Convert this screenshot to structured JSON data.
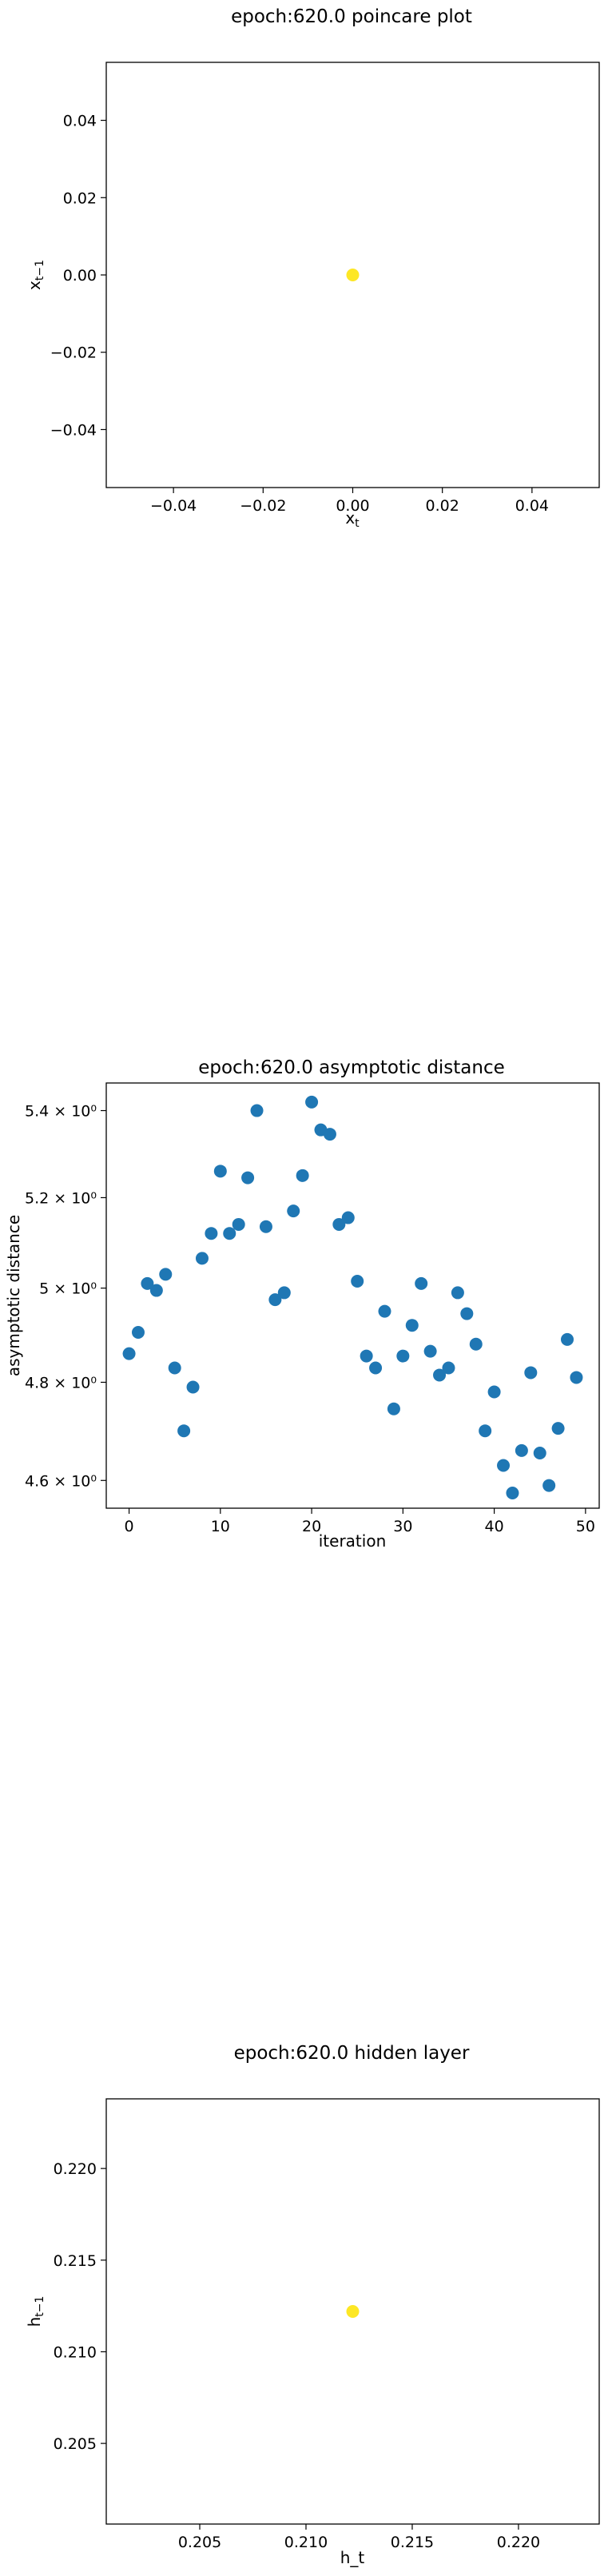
{
  "chart_data": [
    {
      "type": "scatter",
      "title": "epoch:620.0 poincare plot",
      "xlabel": "x_t",
      "ylabel": "x_{t-1}",
      "xlim": [
        -0.055,
        0.055
      ],
      "ylim": [
        -0.055,
        0.055
      ],
      "xticks": [
        -0.04,
        -0.02,
        0.0,
        0.02,
        0.04
      ],
      "xtick_labels": [
        "−0.04",
        "−0.02",
        "0.00",
        "0.02",
        "0.04"
      ],
      "yticks": [
        -0.04,
        -0.02,
        0.0,
        0.02,
        0.04
      ],
      "ytick_labels": [
        "−0.04",
        "−0.02",
        "0.00",
        "0.02",
        "0.04"
      ],
      "grid": false,
      "point_color": "#fde725",
      "points": [
        {
          "x": 0.0,
          "y": 0.0
        }
      ]
    },
    {
      "type": "scatter",
      "title": "epoch:620.0 asymptotic distance",
      "xlabel": "iteration",
      "ylabel": "asymptotic distance",
      "xlim": [
        -2.5,
        51.5
      ],
      "ylim": [
        4.545,
        5.465
      ],
      "yscale": "log",
      "xticks": [
        0,
        10,
        20,
        30,
        40,
        50
      ],
      "xtick_labels": [
        "0",
        "10",
        "20",
        "30",
        "40",
        "50"
      ],
      "yticks": [
        4.6,
        4.8,
        5.0,
        5.2,
        5.4
      ],
      "ytick_labels": [
        "4.6 × 10⁰",
        "4.8 × 10⁰",
        "5 × 10⁰",
        "5.2 × 10⁰",
        "5.4 × 10⁰"
      ],
      "grid": false,
      "point_color": "#1f77b4",
      "x": [
        0,
        1,
        2,
        3,
        4,
        5,
        6,
        7,
        8,
        9,
        10,
        11,
        12,
        13,
        14,
        15,
        16,
        17,
        18,
        19,
        20,
        21,
        22,
        23,
        24,
        25,
        26,
        27,
        28,
        29,
        30,
        31,
        32,
        33,
        34,
        35,
        36,
        37,
        38,
        39,
        40,
        41,
        42,
        43,
        44,
        45,
        46,
        47,
        48,
        49
      ],
      "y": [
        4.86,
        4.905,
        5.01,
        4.995,
        5.03,
        4.83,
        4.7,
        4.79,
        5.065,
        5.12,
        5.26,
        5.12,
        5.14,
        5.245,
        5.4,
        5.135,
        4.975,
        4.99,
        5.17,
        5.25,
        5.42,
        5.355,
        5.345,
        5.14,
        5.155,
        5.015,
        4.855,
        4.83,
        4.95,
        4.745,
        4.855,
        4.92,
        5.01,
        4.865,
        4.815,
        4.83,
        4.99,
        4.945,
        4.88,
        4.7,
        4.78,
        4.63,
        4.575,
        4.66,
        4.82,
        4.655,
        4.59,
        4.705,
        4.89,
        4.81
      ]
    },
    {
      "type": "scatter",
      "title": "epoch:620.0 hidden layer",
      "xlabel": "h_t",
      "ylabel": "h_{t-1}",
      "xlim": [
        0.2006,
        0.2238
      ],
      "ylim": [
        0.2006,
        0.2238
      ],
      "xticks": [
        0.205,
        0.21,
        0.215,
        0.22
      ],
      "xtick_labels": [
        "0.205",
        "0.210",
        "0.215",
        "0.220"
      ],
      "yticks": [
        0.205,
        0.21,
        0.215,
        0.22
      ],
      "ytick_labels": [
        "0.205",
        "0.210",
        "0.215",
        "0.220"
      ],
      "grid": false,
      "point_color": "#fde725",
      "points": [
        {
          "x": 0.2122,
          "y": 0.2122
        }
      ]
    }
  ]
}
